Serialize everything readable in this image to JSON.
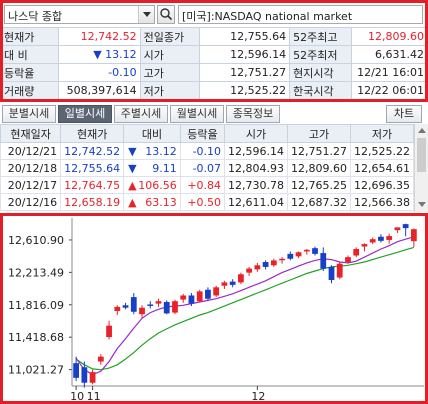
{
  "header": {
    "index_name": "나스닥 종합",
    "market_label": "[미국]:NASDAQ national market"
  },
  "info": {
    "rows": [
      [
        {
          "t": "현재가",
          "c": "lbl"
        },
        {
          "t": "12,742.52",
          "c": "num red"
        },
        {
          "t": "전일종가",
          "c": "lbl"
        },
        {
          "t": "12,755.64",
          "c": "num"
        },
        {
          "t": "52주최고",
          "c": "lbl"
        },
        {
          "t": "12,809.60",
          "c": "num red"
        }
      ],
      [
        {
          "t": "대  비",
          "c": "lbl"
        },
        {
          "t": "▼ 13.12",
          "c": "num blue"
        },
        {
          "t": "시가",
          "c": "lbl"
        },
        {
          "t": "12,596.14",
          "c": "num"
        },
        {
          "t": "52주최저",
          "c": "lbl"
        },
        {
          "t": "6,631.42",
          "c": "num"
        }
      ],
      [
        {
          "t": "등락율",
          "c": "lbl"
        },
        {
          "t": "-0.10",
          "c": "num blue"
        },
        {
          "t": "고가",
          "c": "lbl"
        },
        {
          "t": "12,751.27",
          "c": "num"
        },
        {
          "t": "현지시각",
          "c": "lbl"
        },
        {
          "t": "12/21 16:01",
          "c": "num"
        }
      ],
      [
        {
          "t": "거래량",
          "c": "lbl"
        },
        {
          "t": "508,397,614",
          "c": "num"
        },
        {
          "t": "저가",
          "c": "lbl"
        },
        {
          "t": "12,525.22",
          "c": "num"
        },
        {
          "t": "한국시각",
          "c": "lbl"
        },
        {
          "t": "12/22 06:01",
          "c": "num"
        }
      ]
    ]
  },
  "tabs": [
    {
      "label": "분별시세",
      "active": false
    },
    {
      "label": "일별시세",
      "active": true
    },
    {
      "label": "주별시세",
      "active": false
    },
    {
      "label": "월별시세",
      "active": false
    },
    {
      "label": "종목정보",
      "active": false
    }
  ],
  "chart_button": "차트",
  "daily": {
    "headers": [
      "현재일자",
      "현재가",
      "대비",
      "등락율",
      "시가",
      "고가",
      "저가"
    ],
    "rows": [
      {
        "date": "20/12/21",
        "price": "12,742.52",
        "dir": "▼",
        "change": "13.12",
        "rate": "-0.10",
        "open": "12,596.14",
        "high": "12,751.27",
        "low": "12,525.22",
        "up": false
      },
      {
        "date": "20/12/18",
        "price": "12,755.64",
        "dir": "▼",
        "change": "9.11",
        "rate": "-0.07",
        "open": "12,804.93",
        "high": "12,809.60",
        "low": "12,654.61",
        "up": false
      },
      {
        "date": "20/12/17",
        "price": "12,764.75",
        "dir": "▲",
        "change": "106.56",
        "rate": "+0.84",
        "open": "12,730.78",
        "high": "12,765.25",
        "low": "12,696.35",
        "up": true
      },
      {
        "date": "20/12/16",
        "price": "12,658.19",
        "dir": "▲",
        "change": "63.13",
        "rate": "+0.50",
        "open": "12,611.04",
        "high": "12,687.32",
        "low": "12,566.38",
        "up": true
      }
    ]
  },
  "chart_data": {
    "type": "candlestick",
    "y_ticks": [
      "12,610.90",
      "12,213.49",
      "11,816.09",
      "11,418.68",
      "11,021.27"
    ],
    "y_tick_values": [
      12610.9,
      12213.49,
      11816.09,
      11418.68,
      11021.27
    ],
    "ylim": [
      10820,
      12880
    ],
    "x_labels": [
      {
        "label": "10",
        "index": 0
      },
      {
        "label": "11",
        "index": 2
      },
      {
        "label": "12",
        "index": 22
      }
    ],
    "colors": {
      "up": "#e8222a",
      "down": "#1740c8",
      "ma_short": "#9b2bc8",
      "ma_long": "#22a322"
    },
    "candles": [
      {
        "o": 11100,
        "h": 11180,
        "l": 10880,
        "c": 10920
      },
      {
        "o": 11050,
        "h": 11120,
        "l": 10800,
        "c": 10860
      },
      {
        "o": 10860,
        "h": 11020,
        "l": 10840,
        "c": 10990
      },
      {
        "o": 11120,
        "h": 11210,
        "l": 11080,
        "c": 11180
      },
      {
        "o": 11420,
        "h": 11620,
        "l": 11390,
        "c": 11560
      },
      {
        "o": 11740,
        "h": 11810,
        "l": 11690,
        "c": 11790
      },
      {
        "o": 11810,
        "h": 11840,
        "l": 11760,
        "c": 11780
      },
      {
        "o": 11910,
        "h": 11960,
        "l": 11700,
        "c": 11730
      },
      {
        "o": 11700,
        "h": 11810,
        "l": 11660,
        "c": 11780
      },
      {
        "o": 11820,
        "h": 11860,
        "l": 11770,
        "c": 11810
      },
      {
        "o": 11830,
        "h": 11890,
        "l": 11790,
        "c": 11860
      },
      {
        "o": 11850,
        "h": 11870,
        "l": 11700,
        "c": 11710
      },
      {
        "o": 11720,
        "h": 11880,
        "l": 11700,
        "c": 11860
      },
      {
        "o": 11880,
        "h": 11950,
        "l": 11840,
        "c": 11930
      },
      {
        "o": 11930,
        "h": 11960,
        "l": 11800,
        "c": 11830
      },
      {
        "o": 11860,
        "h": 12000,
        "l": 11850,
        "c": 11980
      },
      {
        "o": 12000,
        "h": 12030,
        "l": 11870,
        "c": 11890
      },
      {
        "o": 11930,
        "h": 12050,
        "l": 11910,
        "c": 12030
      },
      {
        "o": 12050,
        "h": 12110,
        "l": 12010,
        "c": 12090
      },
      {
        "o": 12100,
        "h": 12130,
        "l": 12030,
        "c": 12060
      },
      {
        "o": 12090,
        "h": 12210,
        "l": 12070,
        "c": 12190
      },
      {
        "o": 12210,
        "h": 12280,
        "l": 12170,
        "c": 12260
      },
      {
        "o": 12250,
        "h": 12330,
        "l": 12220,
        "c": 12300
      },
      {
        "o": 12340,
        "h": 12360,
        "l": 12250,
        "c": 12280
      },
      {
        "o": 12300,
        "h": 12380,
        "l": 12280,
        "c": 12360
      },
      {
        "o": 12370,
        "h": 12400,
        "l": 12320,
        "c": 12380
      },
      {
        "o": 12440,
        "h": 12470,
        "l": 12360,
        "c": 12380
      },
      {
        "o": 12410,
        "h": 12470,
        "l": 12390,
        "c": 12460
      },
      {
        "o": 12470,
        "h": 12500,
        "l": 12430,
        "c": 12490
      },
      {
        "o": 12510,
        "h": 12530,
        "l": 12420,
        "c": 12440
      },
      {
        "o": 12450,
        "h": 12520,
        "l": 12230,
        "c": 12260
      },
      {
        "o": 12280,
        "h": 12300,
        "l": 12080,
        "c": 12120
      },
      {
        "o": 12150,
        "h": 12340,
        "l": 12130,
        "c": 12320
      },
      {
        "o": 12340,
        "h": 12420,
        "l": 12320,
        "c": 12400
      },
      {
        "o": 12420,
        "h": 12520,
        "l": 12400,
        "c": 12500
      },
      {
        "o": 12530,
        "h": 12570,
        "l": 12470,
        "c": 12560
      },
      {
        "o": 12580,
        "h": 12640,
        "l": 12560,
        "c": 12620
      },
      {
        "o": 12650,
        "h": 12680,
        "l": 12580,
        "c": 12600
      },
      {
        "o": 12611,
        "h": 12687,
        "l": 12566,
        "c": 12658
      },
      {
        "o": 12731,
        "h": 12765,
        "l": 12696,
        "c": 12765
      },
      {
        "o": 12805,
        "h": 12810,
        "l": 12655,
        "c": 12756
      },
      {
        "o": 12596,
        "h": 12751,
        "l": 12525,
        "c": 12743
      }
    ],
    "ma_short": [
      11160,
      11020,
      10960,
      11000,
      11120,
      11280,
      11400,
      11530,
      11650,
      11720,
      11760,
      11790,
      11800,
      11810,
      11830,
      11850,
      11870,
      11890,
      11920,
      11950,
      11990,
      12030,
      12070,
      12110,
      12160,
      12210,
      12250,
      12290,
      12330,
      12360,
      12380,
      12370,
      12340,
      12330,
      12350,
      12400,
      12450,
      12500,
      12540,
      12590,
      12620,
      12650
    ],
    "ma_long": [
      11150,
      11080,
      11030,
      11020,
      11040,
      11080,
      11150,
      11230,
      11320,
      11400,
      11470,
      11520,
      11570,
      11610,
      11650,
      11690,
      11720,
      11760,
      11800,
      11840,
      11880,
      11920,
      11960,
      12000,
      12040,
      12080,
      12120,
      12160,
      12200,
      12230,
      12260,
      12280,
      12290,
      12300,
      12320,
      12340,
      12370,
      12400,
      12430,
      12460,
      12490,
      12520
    ]
  }
}
